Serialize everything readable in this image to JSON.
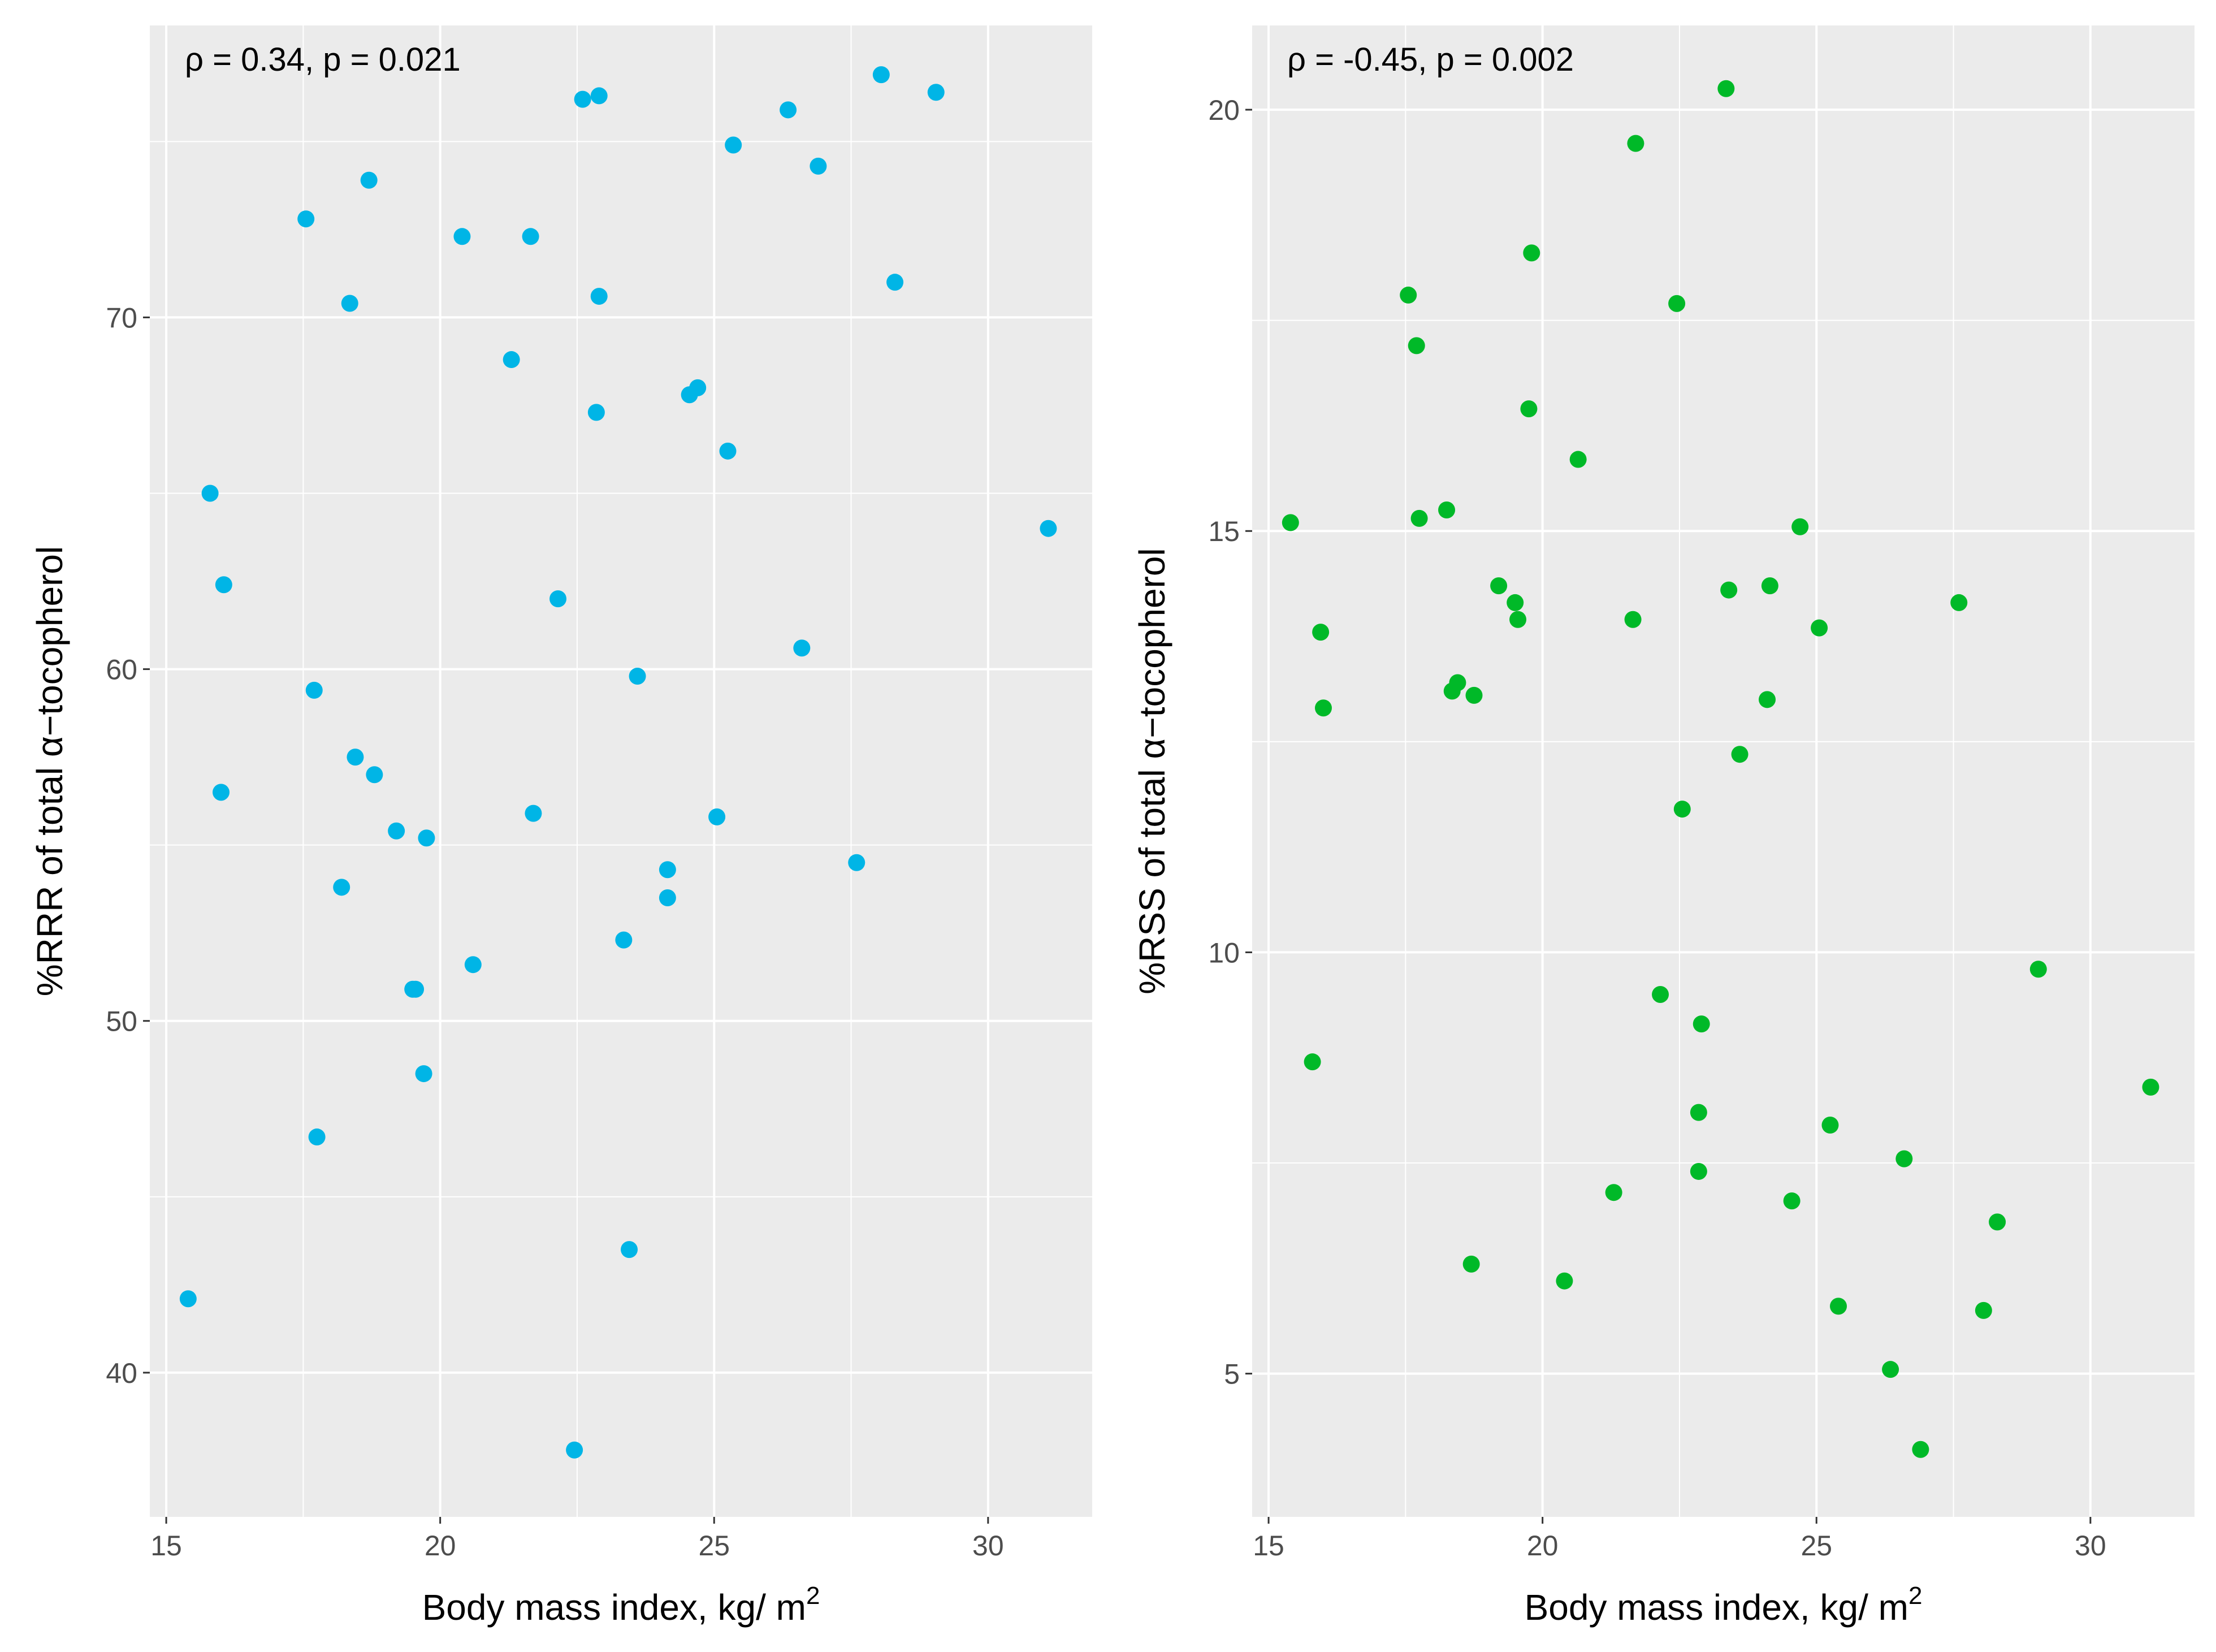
{
  "chart_data": [
    {
      "type": "scatter",
      "annotation": "ρ = 0.34, p = 0.021",
      "xlabel": "Body mass index, kg/ m",
      "xlabel_sup": "2",
      "ylabel": "%RRR of total α−tocopherol",
      "xlim": [
        14.7,
        31.9
      ],
      "ylim": [
        35.9,
        78.3
      ],
      "xticks": [
        "15",
        "20",
        "25",
        "30"
      ],
      "xtick_values": [
        15,
        20,
        25,
        30
      ],
      "yticks": [
        "40",
        "50",
        "60",
        "70"
      ],
      "ytick_values": [
        40,
        50,
        60,
        70
      ],
      "grid": true,
      "point_color": "#00b5e6",
      "x": [
        15.4,
        15.8,
        16.0,
        16.05,
        17.55,
        17.7,
        17.75,
        18.2,
        18.35,
        18.45,
        18.7,
        18.8,
        19.2,
        19.5,
        19.55,
        19.7,
        19.75,
        20.4,
        20.6,
        21.3,
        21.65,
        21.7,
        22.15,
        22.45,
        22.6,
        22.85,
        22.9,
        22.9,
        23.35,
        23.45,
        23.6,
        24.15,
        24.15,
        24.55,
        24.7,
        25.05,
        25.25,
        25.35,
        26.35,
        26.6,
        26.9,
        27.6,
        28.05,
        28.3,
        29.05,
        31.1
      ],
      "y": [
        42.1,
        65.0,
        56.5,
        62.4,
        72.8,
        59.4,
        46.7,
        53.8,
        70.4,
        57.5,
        73.9,
        57.0,
        55.4,
        50.9,
        50.9,
        48.5,
        55.2,
        72.3,
        51.6,
        68.8,
        72.3,
        55.9,
        62.0,
        37.8,
        76.2,
        67.3,
        76.3,
        70.6,
        52.3,
        43.5,
        59.8,
        54.3,
        53.5,
        67.8,
        68.0,
        55.8,
        66.2,
        74.9,
        75.9,
        60.6,
        74.3,
        54.5,
        76.9,
        71.0,
        76.4,
        64.0
      ]
    },
    {
      "type": "scatter",
      "annotation": "ρ = -0.45, p = 0.002",
      "xlabel": "Body mass index, kg/ m",
      "xlabel_sup": "2",
      "ylabel": "%RSS of total α−tocopherol",
      "xlim": [
        14.7,
        31.9
      ],
      "ylim": [
        3.3,
        21.0
      ],
      "xticks": [
        "15",
        "20",
        "25",
        "30"
      ],
      "xtick_values": [
        15,
        20,
        25,
        30
      ],
      "yticks": [
        "5",
        "10",
        "15",
        "20"
      ],
      "ytick_values": [
        5,
        10,
        15,
        20
      ],
      "grid": true,
      "point_color": "#00b928",
      "x": [
        15.4,
        15.8,
        15.95,
        16.0,
        17.55,
        17.7,
        17.75,
        18.25,
        18.35,
        18.45,
        18.7,
        18.75,
        19.2,
        19.5,
        19.55,
        19.75,
        19.8,
        20.4,
        20.65,
        21.3,
        21.65,
        21.7,
        22.15,
        22.45,
        22.55,
        22.85,
        22.85,
        22.9,
        23.35,
        23.4,
        23.6,
        24.1,
        24.15,
        24.55,
        24.7,
        25.05,
        25.25,
        25.4,
        26.35,
        26.6,
        26.9,
        27.6,
        28.05,
        28.3,
        29.05,
        31.1
      ],
      "y": [
        15.1,
        8.7,
        13.8,
        12.9,
        17.8,
        17.2,
        15.15,
        15.25,
        13.1,
        13.2,
        6.3,
        13.05,
        14.35,
        14.15,
        13.95,
        16.45,
        18.3,
        6.1,
        15.85,
        7.15,
        13.95,
        19.6,
        9.5,
        17.7,
        11.7,
        7.4,
        8.1,
        9.15,
        20.25,
        14.3,
        12.35,
        13.0,
        14.35,
        7.05,
        15.05,
        13.85,
        7.95,
        5.8,
        5.05,
        7.55,
        4.1,
        14.15,
        5.75,
        6.8,
        9.8,
        8.4
      ]
    }
  ]
}
